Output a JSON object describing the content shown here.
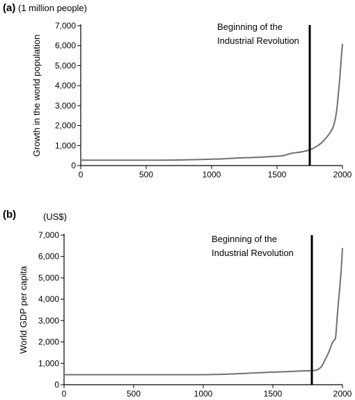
{
  "chart_data": [
    {
      "type": "line",
      "panel_label": "(a)",
      "unit_label": "(1 million people)",
      "ylabel": "Growth in the world population",
      "xlabel": "",
      "xlim": [
        0,
        2000
      ],
      "ylim": [
        0,
        7000
      ],
      "x_ticks": [
        "0",
        "500",
        "1000",
        "1500",
        "2000"
      ],
      "y_ticks": [
        "0",
        "1,000",
        "2,000",
        "3,000",
        "4,000",
        "5,000",
        "6,000",
        "7,000"
      ],
      "grid": false,
      "series": [
        {
          "color": "#707070",
          "x": [
            0,
            200,
            400,
            600,
            750,
            900,
            1000,
            1100,
            1200,
            1300,
            1400,
            1500,
            1550,
            1600,
            1650,
            1700,
            1750,
            1800,
            1850,
            1900,
            1930,
            1950,
            1960,
            1970,
            1980,
            1990,
            2000
          ],
          "y": [
            270,
            270,
            270,
            270,
            280,
            300,
            320,
            340,
            380,
            400,
            430,
            470,
            500,
            600,
            650,
            700,
            790,
            950,
            1200,
            1600,
            1950,
            2500,
            3000,
            3700,
            4400,
            5300,
            6100
          ]
        }
      ],
      "annotation": {
        "x": 1750,
        "lines": [
          "Beginning of the",
          "Industrial Revolution"
        ]
      }
    },
    {
      "type": "line",
      "panel_label": "(b)",
      "unit_label": "(US$)",
      "ylabel": "World GDP per capita",
      "xlabel": "",
      "xlim": [
        0,
        2000
      ],
      "ylim": [
        0,
        7000
      ],
      "x_ticks": [
        "0",
        "500",
        "1000",
        "1500",
        "2000"
      ],
      "y_ticks": [
        "0",
        "1,000",
        "2,000",
        "3,000",
        "4,000",
        "5,000",
        "6,000",
        "7,000"
      ],
      "grid": false,
      "series": [
        {
          "color": "#707070",
          "x": [
            0,
            200,
            400,
            600,
            800,
            1000,
            1100,
            1200,
            1300,
            1400,
            1500,
            1600,
            1700,
            1750,
            1800,
            1820,
            1850,
            1870,
            1900,
            1930,
            1950,
            1960,
            1970,
            1980,
            1990,
            2000
          ],
          "y": [
            470,
            470,
            470,
            470,
            470,
            470,
            480,
            500,
            530,
            560,
            590,
            610,
            640,
            650,
            670,
            700,
            850,
            1100,
            1500,
            2000,
            2200,
            3000,
            3800,
            4500,
            5300,
            6400
          ]
        }
      ],
      "annotation": {
        "x": 1780,
        "lines": [
          "Beginning of the",
          "Industrial Revolution"
        ]
      }
    }
  ]
}
